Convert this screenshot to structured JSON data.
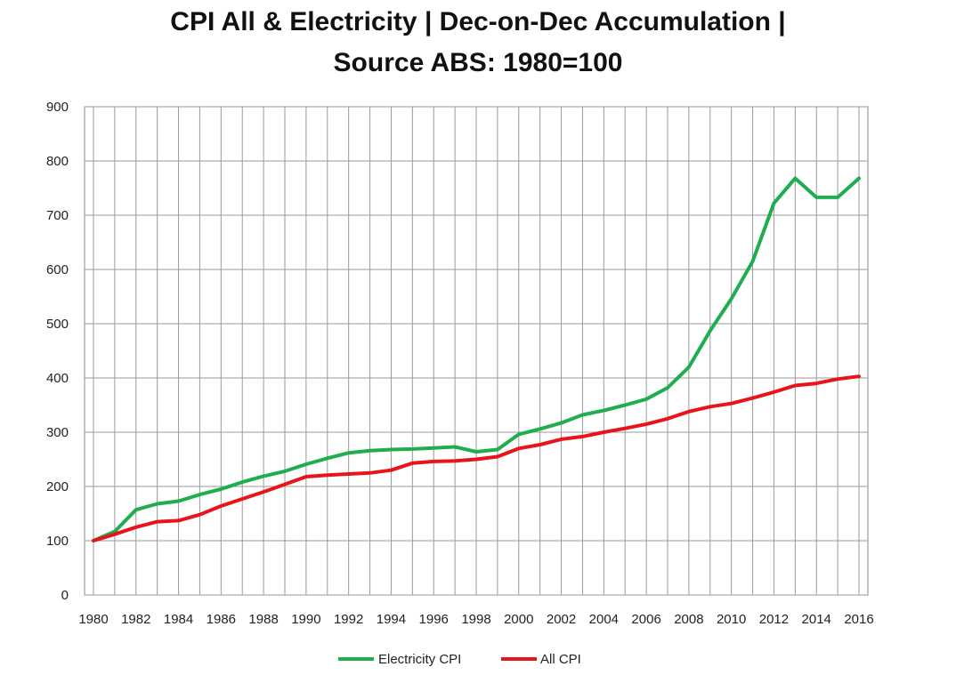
{
  "chart_data": {
    "type": "line",
    "title_lines": [
      "CPI All & Electricity | Dec-on-Dec Accumulation |",
      "Source ABS: 1980=100"
    ],
    "xlabel": "",
    "ylabel": "",
    "ylim": [
      0,
      900
    ],
    "yticks": [
      0,
      100,
      200,
      300,
      400,
      500,
      600,
      700,
      800,
      900
    ],
    "xlim": [
      1980,
      2016
    ],
    "xticks": [
      1980,
      1982,
      1984,
      1986,
      1988,
      1990,
      1992,
      1994,
      1996,
      1998,
      2000,
      2002,
      2004,
      2006,
      2008,
      2010,
      2012,
      2014,
      2016
    ],
    "grid": true,
    "legend_position": "bottom",
    "x": [
      1980,
      1981,
      1982,
      1983,
      1984,
      1985,
      1986,
      1987,
      1988,
      1989,
      1990,
      1991,
      1992,
      1993,
      1994,
      1995,
      1996,
      1997,
      1998,
      1999,
      2000,
      2001,
      2002,
      2003,
      2004,
      2005,
      2006,
      2007,
      2008,
      2009,
      2010,
      2011,
      2012,
      2013,
      2014,
      2015,
      2016
    ],
    "series": [
      {
        "name": "Electricity CPI",
        "color": "#1fad4e",
        "values": [
          100,
          117,
          157,
          168,
          173,
          185,
          195,
          208,
          219,
          228,
          241,
          252,
          262,
          266,
          268,
          269,
          271,
          273,
          264,
          268,
          296,
          306,
          317,
          332,
          340,
          350,
          361,
          382,
          420,
          487,
          546,
          615,
          722,
          768,
          733,
          733,
          768
        ]
      },
      {
        "name": "All CPI",
        "color": "#e8141b",
        "values": [
          100,
          112,
          125,
          135,
          137,
          148,
          164,
          177,
          190,
          204,
          218,
          221,
          223,
          225,
          230,
          243,
          246,
          247,
          250,
          255,
          270,
          277,
          287,
          292,
          300,
          307,
          315,
          325,
          338,
          347,
          353,
          363,
          374,
          386,
          390,
          398,
          403
        ]
      }
    ]
  }
}
